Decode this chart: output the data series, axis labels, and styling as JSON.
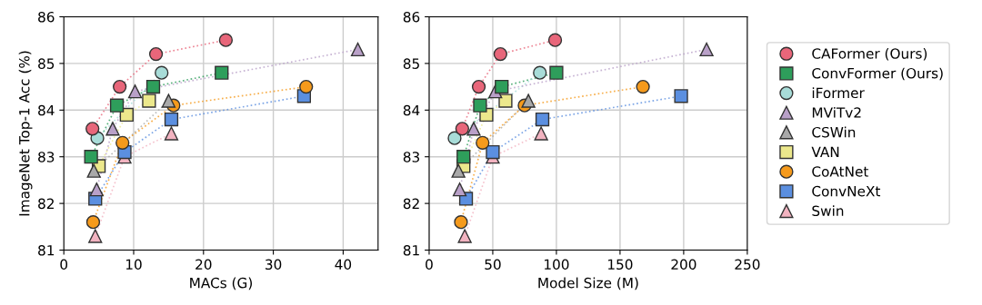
{
  "chart_data": [
    {
      "type": "line",
      "xlabel": "MACs (G)",
      "ylabel": "ImageNet Top-1 Acc (%)",
      "xlim": [
        0,
        45
      ],
      "xticks": [
        0,
        10,
        20,
        30,
        40
      ],
      "ylim": [
        81,
        86
      ],
      "yticks": [
        81,
        82,
        83,
        84,
        85,
        86
      ],
      "grid": true,
      "line_style": "dotted",
      "legend": false,
      "series": [
        {
          "color": "#e8667a",
          "marker": "circle",
          "x": [
            4.1,
            8.0,
            13.2,
            23.2
          ],
          "values": [
            83.6,
            84.5,
            85.2,
            85.5
          ]
        },
        {
          "color": "#2e9e5b",
          "marker": "square",
          "x": [
            3.9,
            7.6,
            12.8,
            22.6
          ],
          "values": [
            83.0,
            84.1,
            84.5,
            84.8
          ]
        },
        {
          "color": "#a8dcd8",
          "marker": "circle",
          "x": [
            4.8,
            14.0
          ],
          "values": [
            83.4,
            84.8
          ]
        },
        {
          "color": "#b9a0c8",
          "marker": "triangle",
          "x": [
            4.7,
            7.0,
            10.2,
            42.1
          ],
          "values": [
            82.3,
            83.6,
            84.4,
            85.3
          ]
        },
        {
          "color": "#a9a9a9",
          "marker": "triangle",
          "x": [
            4.3,
            15.0
          ],
          "values": [
            82.7,
            84.2
          ]
        },
        {
          "color": "#ece88c",
          "marker": "square",
          "x": [
            5.0,
            9.0,
            12.2
          ],
          "values": [
            82.8,
            83.9,
            84.2
          ]
        },
        {
          "color": "#f59a1c",
          "marker": "circle",
          "x": [
            4.2,
            8.4,
            15.7,
            34.7
          ],
          "values": [
            81.6,
            83.3,
            84.1,
            84.5
          ]
        },
        {
          "color": "#5b8fe0",
          "marker": "square",
          "x": [
            4.5,
            8.7,
            15.4,
            34.4
          ],
          "values": [
            82.1,
            83.1,
            83.8,
            84.3
          ]
        },
        {
          "color": "#f2b3c0",
          "marker": "triangle",
          "x": [
            4.5,
            8.7,
            15.4
          ],
          "values": [
            81.3,
            83.0,
            83.5
          ]
        }
      ]
    },
    {
      "type": "line",
      "xlabel": "Model Size (M)",
      "xlim": [
        0,
        250
      ],
      "xticks": [
        0,
        50,
        100,
        150,
        200,
        250
      ],
      "ylim": [
        81,
        86
      ],
      "yticks": [
        81,
        82,
        83,
        84,
        85,
        86
      ],
      "grid": true,
      "line_style": "dotted",
      "legend": "right",
      "series": [
        {
          "name": "CAFormer (Ours)",
          "color": "#e8667a",
          "marker": "circle",
          "x": [
            26,
            39,
            56,
            99
          ],
          "values": [
            83.6,
            84.5,
            85.2,
            85.5
          ]
        },
        {
          "name": "ConvFormer (Ours)",
          "color": "#2e9e5b",
          "marker": "square",
          "x": [
            27,
            40,
            57,
            100
          ],
          "values": [
            83.0,
            84.1,
            84.5,
            84.8
          ]
        },
        {
          "name": "iFormer",
          "color": "#a8dcd8",
          "marker": "circle",
          "x": [
            20,
            87
          ],
          "values": [
            83.4,
            84.8
          ]
        },
        {
          "name": "MViTv2",
          "color": "#b9a0c8",
          "marker": "triangle",
          "x": [
            24,
            35,
            52,
            218
          ],
          "values": [
            82.3,
            83.6,
            84.4,
            85.3
          ]
        },
        {
          "name": "CSWin",
          "color": "#a9a9a9",
          "marker": "triangle",
          "x": [
            23,
            78
          ],
          "values": [
            82.7,
            84.2
          ]
        },
        {
          "name": "VAN",
          "color": "#ece88c",
          "marker": "square",
          "x": [
            27,
            45,
            60
          ],
          "values": [
            82.8,
            83.9,
            84.2
          ]
        },
        {
          "name": "CoAtNet",
          "color": "#f59a1c",
          "marker": "circle",
          "x": [
            25,
            42,
            75,
            168
          ],
          "values": [
            81.6,
            83.3,
            84.1,
            84.5
          ]
        },
        {
          "name": "ConvNeXt",
          "color": "#5b8fe0",
          "marker": "square",
          "x": [
            29,
            50,
            89,
            198
          ],
          "values": [
            82.1,
            83.1,
            83.8,
            84.3
          ]
        },
        {
          "name": "Swin",
          "color": "#f2b3c0",
          "marker": "triangle",
          "x": [
            28,
            50,
            88
          ],
          "values": [
            81.3,
            83.0,
            83.5
          ]
        }
      ]
    }
  ]
}
